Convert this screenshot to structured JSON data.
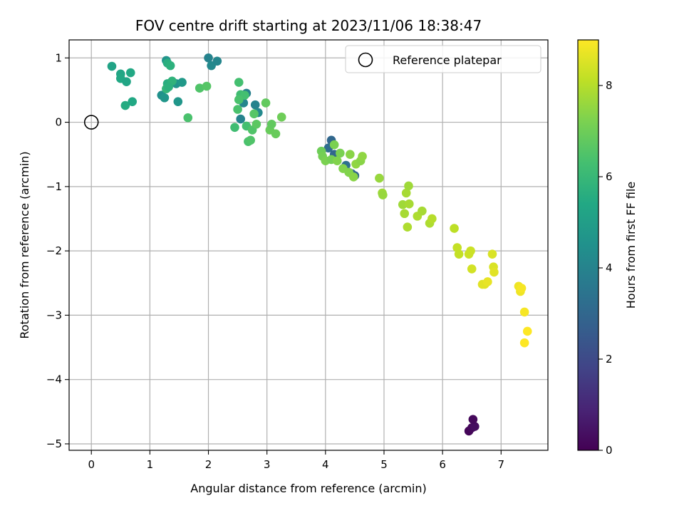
{
  "chart_data": {
    "type": "scatter",
    "title": "FOV centre drift starting at 2023/11/06 18:38:47",
    "xlabel": "Angular distance from reference (arcmin)",
    "ylabel": "Rotation from reference (arcmin)",
    "xlim": [
      -0.38,
      7.8
    ],
    "ylim": [
      -5.1,
      1.28
    ],
    "x_ticks": [
      0,
      1,
      2,
      3,
      4,
      5,
      6,
      7
    ],
    "y_ticks": [
      1,
      0,
      -1,
      -2,
      -3,
      -4,
      -5
    ],
    "grid": true,
    "legend": {
      "placement": "top-right",
      "entries": [
        "Reference platepar"
      ]
    },
    "reference_point": {
      "x": 0,
      "y": 0,
      "label": "Reference platepar"
    },
    "colorbar": {
      "label": "Hours from first FF file",
      "range": [
        0,
        9
      ],
      "ticks": [
        0,
        2,
        4,
        6,
        8
      ],
      "colormap": "viridis"
    },
    "points": [
      {
        "x": 6.45,
        "y": -4.8,
        "c": 0.1
      },
      {
        "x": 6.5,
        "y": -4.75,
        "c": 0.2
      },
      {
        "x": 6.55,
        "y": -4.73,
        "c": 0.3
      },
      {
        "x": 6.52,
        "y": -4.62,
        "c": 0.2
      },
      {
        "x": 4.1,
        "y": -0.28,
        "c": 3.0
      },
      {
        "x": 4.05,
        "y": -0.4,
        "c": 3.2
      },
      {
        "x": 4.15,
        "y": -0.5,
        "c": 3.0
      },
      {
        "x": 4.35,
        "y": -0.67,
        "c": 3.3
      },
      {
        "x": 4.45,
        "y": -0.8,
        "c": 3.2
      },
      {
        "x": 4.5,
        "y": -0.83,
        "c": 3.0
      },
      {
        "x": 2.0,
        "y": 1.0,
        "c": 4.0
      },
      {
        "x": 2.05,
        "y": 0.88,
        "c": 4.2
      },
      {
        "x": 2.15,
        "y": 0.95,
        "c": 4.1
      },
      {
        "x": 2.65,
        "y": 0.45,
        "c": 3.9
      },
      {
        "x": 2.6,
        "y": 0.3,
        "c": 4.1
      },
      {
        "x": 2.8,
        "y": 0.27,
        "c": 4.0
      },
      {
        "x": 2.85,
        "y": 0.15,
        "c": 4.2
      },
      {
        "x": 2.55,
        "y": 0.05,
        "c": 4.0
      },
      {
        "x": 1.28,
        "y": 0.96,
        "c": 4.6
      },
      {
        "x": 1.2,
        "y": 0.42,
        "c": 4.5
      },
      {
        "x": 1.25,
        "y": 0.38,
        "c": 4.7
      },
      {
        "x": 1.45,
        "y": 0.6,
        "c": 4.6
      },
      {
        "x": 1.55,
        "y": 0.62,
        "c": 4.8
      },
      {
        "x": 1.48,
        "y": 0.32,
        "c": 4.7
      },
      {
        "x": 0.35,
        "y": 0.87,
        "c": 5.2
      },
      {
        "x": 0.5,
        "y": 0.75,
        "c": 5.3
      },
      {
        "x": 0.5,
        "y": 0.68,
        "c": 5.4
      },
      {
        "x": 0.6,
        "y": 0.63,
        "c": 5.3
      },
      {
        "x": 0.67,
        "y": 0.77,
        "c": 5.4
      },
      {
        "x": 0.58,
        "y": 0.26,
        "c": 5.5
      },
      {
        "x": 0.7,
        "y": 0.32,
        "c": 5.4
      },
      {
        "x": 1.3,
        "y": 0.92,
        "c": 5.6
      },
      {
        "x": 1.35,
        "y": 0.88,
        "c": 5.7
      },
      {
        "x": 1.3,
        "y": 0.6,
        "c": 5.6
      },
      {
        "x": 1.38,
        "y": 0.64,
        "c": 5.8
      },
      {
        "x": 1.28,
        "y": 0.52,
        "c": 5.9
      },
      {
        "x": 1.32,
        "y": 0.55,
        "c": 5.7
      },
      {
        "x": 1.65,
        "y": 0.07,
        "c": 6.4
      },
      {
        "x": 1.85,
        "y": 0.53,
        "c": 6.5
      },
      {
        "x": 1.97,
        "y": 0.56,
        "c": 6.6
      },
      {
        "x": 2.52,
        "y": 0.62,
        "c": 6.3
      },
      {
        "x": 2.55,
        "y": 0.43,
        "c": 6.2
      },
      {
        "x": 2.62,
        "y": 0.42,
        "c": 6.3
      },
      {
        "x": 2.52,
        "y": 0.35,
        "c": 6.4
      },
      {
        "x": 2.5,
        "y": 0.2,
        "c": 6.4
      },
      {
        "x": 2.45,
        "y": -0.08,
        "c": 6.2
      },
      {
        "x": 2.65,
        "y": -0.06,
        "c": 6.3
      },
      {
        "x": 2.75,
        "y": -0.12,
        "c": 6.5
      },
      {
        "x": 2.68,
        "y": -0.3,
        "c": 6.4
      },
      {
        "x": 2.72,
        "y": -0.28,
        "c": 6.5
      },
      {
        "x": 2.78,
        "y": 0.13,
        "c": 6.6
      },
      {
        "x": 2.82,
        "y": -0.03,
        "c": 6.7
      },
      {
        "x": 2.98,
        "y": 0.3,
        "c": 6.8
      },
      {
        "x": 3.05,
        "y": -0.12,
        "c": 6.9
      },
      {
        "x": 3.08,
        "y": -0.03,
        "c": 6.8
      },
      {
        "x": 3.15,
        "y": -0.18,
        "c": 6.9
      },
      {
        "x": 3.25,
        "y": 0.08,
        "c": 7.0
      },
      {
        "x": 3.93,
        "y": -0.45,
        "c": 7.0
      },
      {
        "x": 3.95,
        "y": -0.53,
        "c": 7.1
      },
      {
        "x": 4.0,
        "y": -0.6,
        "c": 7.2
      },
      {
        "x": 4.1,
        "y": -0.58,
        "c": 7.1
      },
      {
        "x": 4.15,
        "y": -0.35,
        "c": 7.2
      },
      {
        "x": 4.2,
        "y": -0.6,
        "c": 7.3
      },
      {
        "x": 4.25,
        "y": -0.48,
        "c": 7.2
      },
      {
        "x": 4.3,
        "y": -0.72,
        "c": 7.3
      },
      {
        "x": 4.42,
        "y": -0.5,
        "c": 7.4
      },
      {
        "x": 4.4,
        "y": -0.78,
        "c": 7.3
      },
      {
        "x": 4.48,
        "y": -0.85,
        "c": 7.4
      },
      {
        "x": 4.52,
        "y": -0.65,
        "c": 7.5
      },
      {
        "x": 4.6,
        "y": -0.6,
        "c": 7.4
      },
      {
        "x": 4.63,
        "y": -0.53,
        "c": 7.5
      },
      {
        "x": 4.92,
        "y": -0.87,
        "c": 7.6
      },
      {
        "x": 4.97,
        "y": -1.1,
        "c": 7.7
      },
      {
        "x": 4.98,
        "y": -1.13,
        "c": 7.6
      },
      {
        "x": 5.32,
        "y": -1.28,
        "c": 7.7
      },
      {
        "x": 5.38,
        "y": -1.1,
        "c": 7.8
      },
      {
        "x": 5.42,
        "y": -0.99,
        "c": 7.7
      },
      {
        "x": 5.35,
        "y": -1.42,
        "c": 7.8
      },
      {
        "x": 5.43,
        "y": -1.27,
        "c": 7.8
      },
      {
        "x": 5.4,
        "y": -1.63,
        "c": 7.9
      },
      {
        "x": 5.57,
        "y": -1.46,
        "c": 7.9
      },
      {
        "x": 5.65,
        "y": -1.38,
        "c": 7.8
      },
      {
        "x": 5.78,
        "y": -1.57,
        "c": 7.9
      },
      {
        "x": 5.82,
        "y": -1.5,
        "c": 8.0
      },
      {
        "x": 6.2,
        "y": -1.65,
        "c": 8.1
      },
      {
        "x": 6.25,
        "y": -1.95,
        "c": 8.2
      },
      {
        "x": 6.28,
        "y": -2.05,
        "c": 8.2
      },
      {
        "x": 6.45,
        "y": -2.05,
        "c": 8.3
      },
      {
        "x": 6.48,
        "y": -2.0,
        "c": 8.3
      },
      {
        "x": 6.5,
        "y": -2.28,
        "c": 8.4
      },
      {
        "x": 6.85,
        "y": -2.05,
        "c": 8.5
      },
      {
        "x": 6.87,
        "y": -2.25,
        "c": 8.5
      },
      {
        "x": 6.88,
        "y": -2.33,
        "c": 8.6
      },
      {
        "x": 6.68,
        "y": -2.52,
        "c": 8.6
      },
      {
        "x": 6.72,
        "y": -2.52,
        "c": 8.6
      },
      {
        "x": 6.77,
        "y": -2.48,
        "c": 8.7
      },
      {
        "x": 7.3,
        "y": -2.55,
        "c": 8.8
      },
      {
        "x": 7.33,
        "y": -2.63,
        "c": 8.8
      },
      {
        "x": 7.35,
        "y": -2.58,
        "c": 8.9
      },
      {
        "x": 7.4,
        "y": -2.95,
        "c": 8.9
      },
      {
        "x": 7.45,
        "y": -3.25,
        "c": 9.0
      },
      {
        "x": 7.4,
        "y": -3.43,
        "c": 9.0
      }
    ]
  }
}
